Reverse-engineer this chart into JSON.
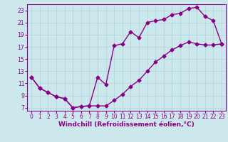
{
  "xlabel": "Windchill (Refroidissement éolien,°C)",
  "xlim": [
    -0.5,
    23.5
  ],
  "ylim": [
    6.5,
    24
  ],
  "xticks": [
    0,
    1,
    2,
    3,
    4,
    5,
    6,
    7,
    8,
    9,
    10,
    11,
    12,
    13,
    14,
    15,
    16,
    17,
    18,
    19,
    20,
    21,
    22,
    23
  ],
  "yticks": [
    7,
    9,
    11,
    13,
    15,
    17,
    19,
    21,
    23
  ],
  "bg_color": "#cde8ec",
  "line_color": "#880088",
  "grid_color": "#b0d4d8",
  "line1_x": [
    0,
    1,
    2,
    3,
    4,
    5,
    6,
    7,
    8,
    9,
    10,
    11,
    12,
    13,
    14,
    15,
    16,
    17,
    18,
    19,
    20,
    21,
    22,
    23
  ],
  "line1_y": [
    12,
    10.2,
    9.5,
    8.8,
    8.5,
    7.0,
    7.2,
    7.3,
    12.0,
    10.8,
    17.2,
    17.5,
    19.5,
    18.5,
    21.0,
    21.3,
    21.5,
    22.3,
    22.5,
    23.3,
    23.5,
    22.0,
    21.3,
    17.5
  ],
  "line2_x": [
    0,
    1,
    2,
    3,
    4,
    5,
    6,
    7,
    8,
    9,
    10,
    11,
    12,
    13,
    14,
    15,
    16,
    17,
    18,
    19,
    20,
    21,
    22,
    23
  ],
  "line2_y": [
    12,
    10.2,
    9.5,
    8.8,
    8.5,
    7.0,
    7.2,
    7.3,
    7.3,
    7.3,
    8.2,
    9.2,
    10.5,
    11.5,
    13.0,
    14.5,
    15.5,
    16.5,
    17.2,
    17.8,
    17.5,
    17.3,
    17.3,
    17.5
  ],
  "marker": "D",
  "markersize": 2.5,
  "linewidth": 1.0,
  "fontsize_label": 6.5,
  "fontsize_tick": 5.5
}
